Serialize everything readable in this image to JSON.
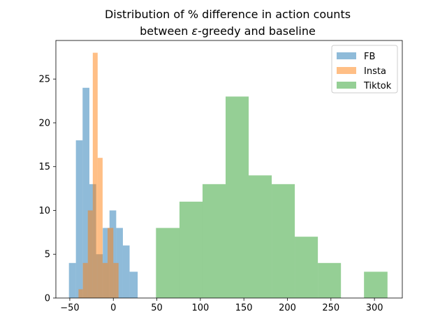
{
  "chart_data": {
    "type": "bar",
    "subtype": "overlapping-histogram",
    "title_line1": "Distribution of % difference in action counts",
    "title_line2_prefix": "between ",
    "title_line2_symbol": "ε",
    "title_line2_suffix": "-greedy and baseline",
    "xlabel": "",
    "ylabel": "",
    "xlim": [
      -66,
      332
    ],
    "ylim": [
      0,
      29.4
    ],
    "xticks": [
      -50,
      0,
      50,
      100,
      150,
      200,
      250,
      300
    ],
    "yticks": [
      0,
      5,
      10,
      15,
      20,
      25
    ],
    "grid": false,
    "legend_position": "top-right",
    "opacity": 0.5,
    "series": [
      {
        "name": "FB",
        "color": "#1f77b4",
        "bins": [
          {
            "x0": -51,
            "x1": -43,
            "count": 4
          },
          {
            "x0": -43,
            "x1": -35.3,
            "count": 18
          },
          {
            "x0": -35.3,
            "x1": -27.5,
            "count": 24
          },
          {
            "x0": -27.5,
            "x1": -19.8,
            "count": 13
          },
          {
            "x0": -19.8,
            "x1": -12.1,
            "count": 5
          },
          {
            "x0": -12.1,
            "x1": -4.4,
            "count": 8
          },
          {
            "x0": -4.4,
            "x1": 3.3,
            "count": 10
          },
          {
            "x0": 3.3,
            "x1": 11,
            "count": 8
          },
          {
            "x0": 11,
            "x1": 18.7,
            "count": 6
          },
          {
            "x0": 18.7,
            "x1": 28,
            "count": 3
          }
        ]
      },
      {
        "name": "Insta",
        "color": "#ff7f0e",
        "bins": [
          {
            "x0": -40,
            "x1": -35,
            "count": 1
          },
          {
            "x0": -35,
            "x1": -29.3,
            "count": 4
          },
          {
            "x0": -29.3,
            "x1": -23.6,
            "count": 10
          },
          {
            "x0": -23.6,
            "x1": -18,
            "count": 28
          },
          {
            "x0": -18,
            "x1": -12.3,
            "count": 16
          },
          {
            "x0": -12.3,
            "x1": -6.6,
            "count": 4
          },
          {
            "x0": -6.6,
            "x1": 0,
            "count": 8
          },
          {
            "x0": 0,
            "x1": 6,
            "count": 4
          }
        ]
      },
      {
        "name": "Tiktok",
        "color": "#2ca02c",
        "bins": [
          {
            "x0": 49,
            "x1": 76,
            "count": 8
          },
          {
            "x0": 76,
            "x1": 102.5,
            "count": 11
          },
          {
            "x0": 102.5,
            "x1": 129,
            "count": 13
          },
          {
            "x0": 129,
            "x1": 155.5,
            "count": 23
          },
          {
            "x0": 155.5,
            "x1": 182,
            "count": 14
          },
          {
            "x0": 182,
            "x1": 208.5,
            "count": 13
          },
          {
            "x0": 208.5,
            "x1": 235,
            "count": 7
          },
          {
            "x0": 235,
            "x1": 261.5,
            "count": 4
          },
          {
            "x0": 261.5,
            "x1": 288,
            "count": 0
          },
          {
            "x0": 288,
            "x1": 315,
            "count": 3
          }
        ]
      }
    ]
  }
}
